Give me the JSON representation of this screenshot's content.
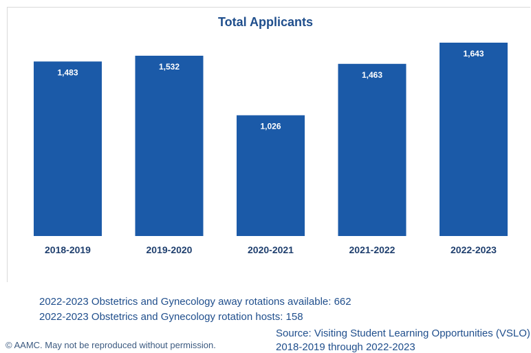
{
  "chart_data": {
    "type": "bar",
    "title": "Total Applicants",
    "categories": [
      "2018-2019",
      "2019-2020",
      "2020-2021",
      "2021-2022",
      "2022-2023"
    ],
    "values": [
      1483,
      1532,
      1026,
      1463,
      1643
    ],
    "value_labels": [
      "1,483",
      "1,532",
      "1,026",
      "1,463",
      "1,643"
    ],
    "bar_color": "#1b5aa8",
    "ylim": [
      0,
      1643
    ],
    "grid": false,
    "legend": "none"
  },
  "notes": {
    "away_rotations": "2022-2023 Obstetrics and Gynecology away rotations available: 662",
    "rotation_hosts": "2022-2023 Obstetrics and Gynecology rotation hosts: 158"
  },
  "footer": {
    "copyright": "© AAMC. May not be reproduced without permission.",
    "source_line1": "Source: Visiting Student Learning Opportunities (VSLO),",
    "source_line2": "2018-2019 through 2022-2023"
  }
}
